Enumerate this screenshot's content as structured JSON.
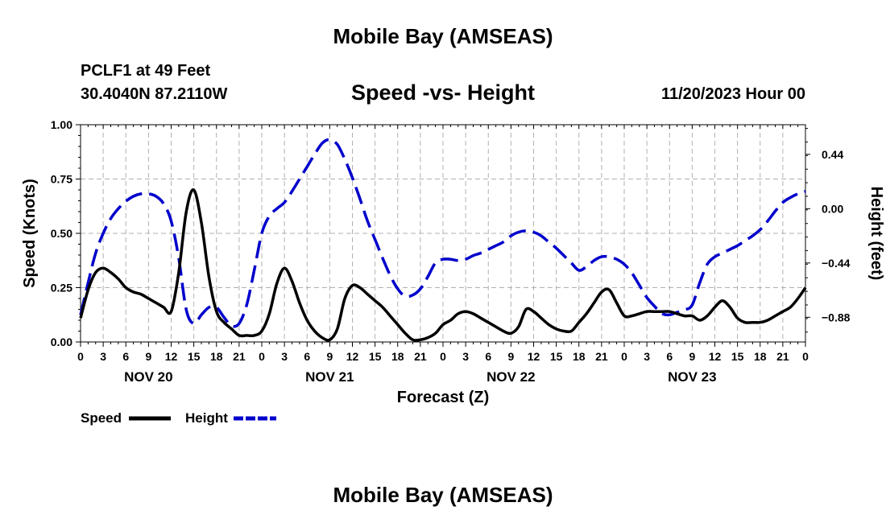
{
  "titles": {
    "top": "Mobile Bay (AMSEAS)",
    "bottom": "Mobile Bay (AMSEAS)",
    "station": "PCLF1 at 49 Feet",
    "coords": "30.4040N  87.2110W",
    "subtitle": "Speed -vs- Height",
    "datetime": "11/20/2023 Hour 00"
  },
  "chart_data": {
    "type": "line",
    "title": "Speed -vs- Height",
    "xlabel": "Forecast (Z)",
    "ylabel": "Speed (Knots)",
    "y2label": "Height (feet)",
    "x_range_hours": [
      0,
      96
    ],
    "ylim": [
      0,
      1.0
    ],
    "y2lim": [
      -1.08,
      0.68
    ],
    "grid": true,
    "legend_position": "bottom-left",
    "x_tick_labels": [
      "0",
      "3",
      "6",
      "9",
      "12",
      "15",
      "18",
      "21",
      "0",
      "3",
      "6",
      "9",
      "12",
      "15",
      "18",
      "21",
      "0",
      "3",
      "6",
      "9",
      "12",
      "15",
      "18",
      "21",
      "0",
      "3",
      "6",
      "9",
      "12",
      "15",
      "18",
      "21",
      "0"
    ],
    "date_labels": [
      {
        "label": "NOV 20",
        "hour": 9
      },
      {
        "label": "NOV 21",
        "hour": 33
      },
      {
        "label": "NOV 22",
        "hour": 57
      },
      {
        "label": "NOV 23",
        "hour": 81
      }
    ],
    "y_ticks": [
      "0.00",
      "0.25",
      "0.50",
      "0.75",
      "1.00"
    ],
    "y_tick_values": [
      0,
      0.25,
      0.5,
      0.75,
      1.0
    ],
    "y2_ticks": [
      "0.44",
      "0.00",
      "−0.44",
      "−0.88"
    ],
    "y2_tick_values": [
      0.44,
      0.0,
      -0.44,
      -0.88
    ],
    "series": [
      {
        "name": "Speed",
        "axis": "left",
        "color": "#000000",
        "style": "solid",
        "x": [
          0,
          1,
          2,
          3,
          4,
          5,
          6,
          7,
          8,
          9,
          10,
          11,
          12,
          13,
          14,
          15,
          16,
          17,
          18,
          19,
          20,
          21,
          22,
          23,
          24,
          25,
          26,
          27,
          28,
          29,
          30,
          31,
          32,
          33,
          34,
          35,
          36,
          37,
          38,
          39,
          40,
          41,
          42,
          43,
          44,
          45,
          46,
          47,
          48,
          49,
          50,
          51,
          52,
          53,
          54,
          55,
          56,
          57,
          58,
          59,
          60,
          61,
          62,
          63,
          64,
          65,
          66,
          67,
          68,
          69,
          70,
          71,
          72,
          73,
          74,
          75,
          76,
          77,
          78,
          79,
          80,
          81,
          82,
          83,
          84,
          85,
          86,
          87,
          88,
          89,
          90,
          91,
          92,
          93,
          94,
          95,
          96
        ],
        "values": [
          0.11,
          0.24,
          0.32,
          0.34,
          0.32,
          0.29,
          0.25,
          0.23,
          0.22,
          0.2,
          0.18,
          0.16,
          0.14,
          0.32,
          0.6,
          0.7,
          0.55,
          0.3,
          0.14,
          0.09,
          0.06,
          0.03,
          0.03,
          0.03,
          0.05,
          0.13,
          0.27,
          0.34,
          0.28,
          0.18,
          0.1,
          0.05,
          0.02,
          0.01,
          0.06,
          0.2,
          0.26,
          0.25,
          0.22,
          0.19,
          0.16,
          0.12,
          0.08,
          0.04,
          0.01,
          0.01,
          0.02,
          0.04,
          0.08,
          0.1,
          0.13,
          0.14,
          0.13,
          0.11,
          0.09,
          0.07,
          0.05,
          0.04,
          0.07,
          0.15,
          0.14,
          0.11,
          0.08,
          0.06,
          0.05,
          0.05,
          0.09,
          0.13,
          0.18,
          0.23,
          0.24,
          0.18,
          0.12,
          0.12,
          0.13,
          0.14,
          0.14,
          0.14,
          0.14,
          0.13,
          0.12,
          0.12,
          0.1,
          0.12,
          0.16,
          0.19,
          0.16,
          0.11,
          0.09,
          0.09,
          0.09,
          0.1,
          0.12,
          0.14,
          0.16,
          0.2,
          0.25
        ]
      },
      {
        "name": "Height",
        "axis": "right",
        "color": "#0000cc",
        "style": "dashed",
        "x": [
          0,
          1,
          2,
          3,
          4,
          5,
          6,
          7,
          8,
          9,
          10,
          11,
          12,
          13,
          14,
          15,
          16,
          17,
          18,
          19,
          20,
          21,
          22,
          23,
          24,
          25,
          26,
          27,
          28,
          29,
          30,
          31,
          32,
          33,
          34,
          35,
          36,
          37,
          38,
          39,
          40,
          41,
          42,
          43,
          44,
          45,
          46,
          47,
          48,
          49,
          50,
          51,
          52,
          53,
          54,
          55,
          56,
          57,
          58,
          59,
          60,
          61,
          62,
          63,
          64,
          65,
          66,
          67,
          68,
          69,
          70,
          71,
          72,
          73,
          74,
          75,
          76,
          77,
          78,
          79,
          80,
          81,
          82,
          83,
          84,
          85,
          86,
          87,
          88,
          89,
          90,
          91,
          92,
          93,
          94,
          95,
          96
        ],
        "values": [
          -0.86,
          -0.6,
          -0.36,
          -0.2,
          -0.08,
          0.0,
          0.06,
          0.1,
          0.12,
          0.12,
          0.1,
          0.04,
          -0.1,
          -0.4,
          -0.82,
          -0.93,
          -0.86,
          -0.8,
          -0.8,
          -0.88,
          -0.95,
          -0.93,
          -0.78,
          -0.5,
          -0.2,
          -0.06,
          0.0,
          0.05,
          0.14,
          0.24,
          0.34,
          0.44,
          0.53,
          0.56,
          0.52,
          0.4,
          0.25,
          0.08,
          -0.1,
          -0.25,
          -0.4,
          -0.54,
          -0.65,
          -0.71,
          -0.7,
          -0.65,
          -0.55,
          -0.44,
          -0.41,
          -0.41,
          -0.42,
          -0.41,
          -0.38,
          -0.36,
          -0.33,
          -0.3,
          -0.27,
          -0.22,
          -0.19,
          -0.18,
          -0.19,
          -0.22,
          -0.27,
          -0.32,
          -0.38,
          -0.44,
          -0.5,
          -0.47,
          -0.42,
          -0.39,
          -0.39,
          -0.41,
          -0.45,
          -0.52,
          -0.62,
          -0.72,
          -0.79,
          -0.85,
          -0.86,
          -0.84,
          -0.82,
          -0.78,
          -0.6,
          -0.45,
          -0.39,
          -0.36,
          -0.33,
          -0.3,
          -0.26,
          -0.22,
          -0.17,
          -0.1,
          -0.02,
          0.05,
          0.09,
          0.12,
          0.14
        ]
      }
    ]
  },
  "legend": {
    "speed_label": "Speed",
    "height_label": "Height"
  }
}
